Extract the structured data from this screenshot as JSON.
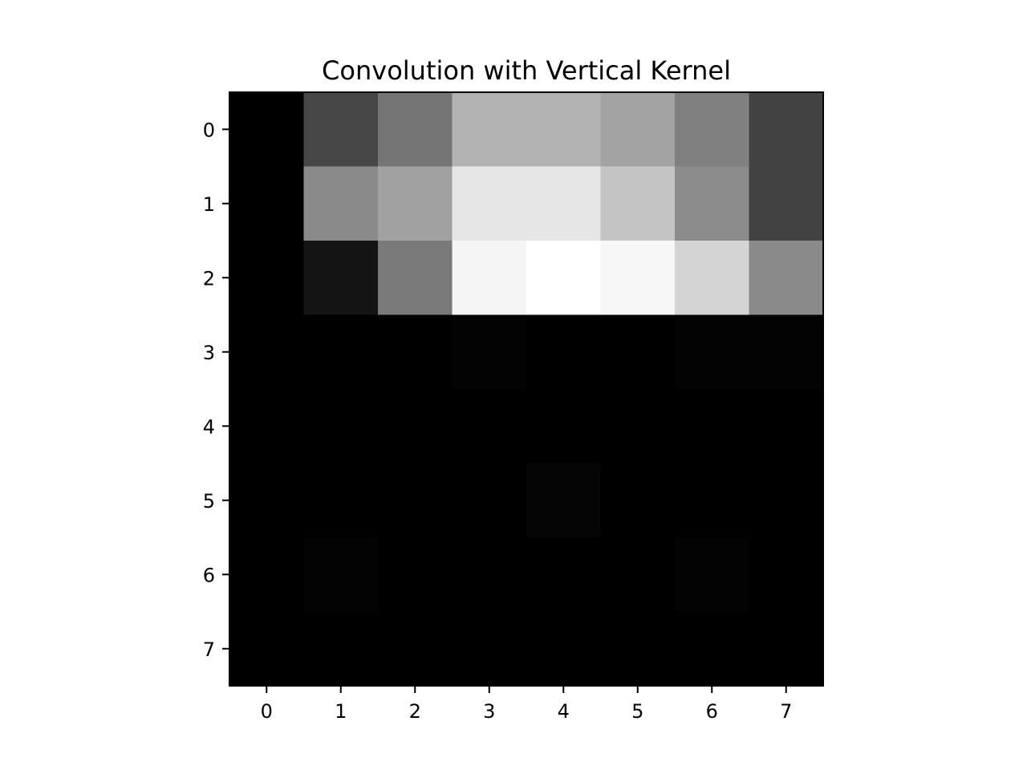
{
  "chart_data": {
    "type": "heatmap",
    "title": "Convolution with Vertical Kernel",
    "xlabel": "",
    "ylabel": "",
    "colormap": "gray",
    "x_ticks": [
      "0",
      "1",
      "2",
      "3",
      "4",
      "5",
      "6",
      "7"
    ],
    "y_ticks": [
      "0",
      "1",
      "2",
      "3",
      "4",
      "5",
      "6",
      "7"
    ],
    "values": [
      [
        0.0,
        0.28,
        0.46,
        0.7,
        0.7,
        0.64,
        0.5,
        0.26
      ],
      [
        0.0,
        0.54,
        0.63,
        0.9,
        0.9,
        0.77,
        0.55,
        0.26
      ],
      [
        0.0,
        0.08,
        0.48,
        0.96,
        1.0,
        0.97,
        0.83,
        0.54
      ],
      [
        0.0,
        0.0,
        0.0,
        0.01,
        0.0,
        0.0,
        0.01,
        0.01
      ],
      [
        0.0,
        0.0,
        0.0,
        0.0,
        0.0,
        0.0,
        0.0,
        0.0
      ],
      [
        0.0,
        0.0,
        0.0,
        0.0,
        0.02,
        0.0,
        0.0,
        0.0
      ],
      [
        0.0,
        0.01,
        0.0,
        0.0,
        0.0,
        0.0,
        0.01,
        0.0
      ],
      [
        0.0,
        0.0,
        0.0,
        0.0,
        0.0,
        0.0,
        0.0,
        0.0
      ]
    ],
    "grid": false
  }
}
